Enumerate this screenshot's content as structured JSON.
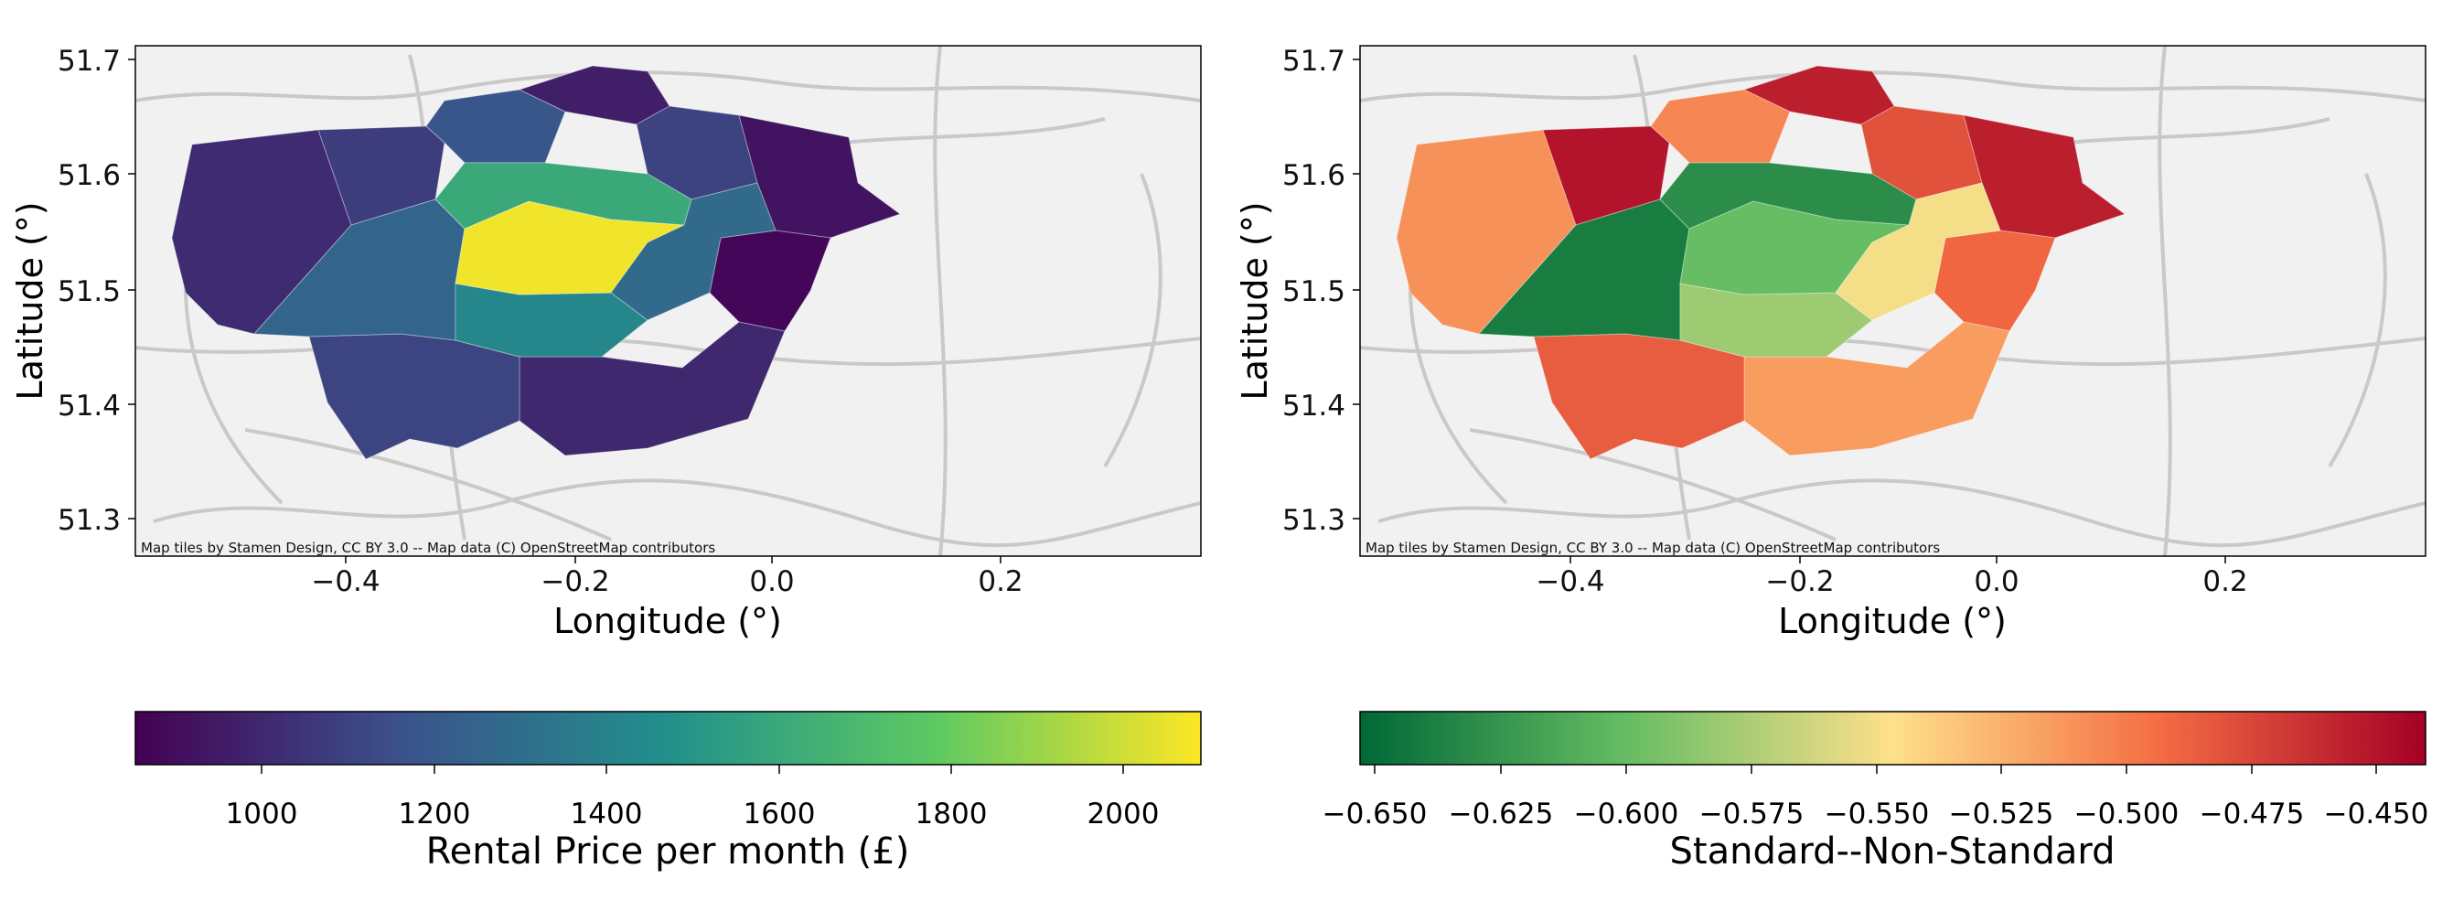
{
  "maps": [
    {
      "id": "rental",
      "attribution": "Map tiles by Stamen Design, CC BY 3.0 -- Map data (C) OpenStreetMap contributors",
      "xlabel": "Longitude (°)",
      "ylabel": "Latitude (°)",
      "xticks": [
        "−0.4",
        "−0.2",
        "0.0",
        "0.2"
      ],
      "yticks": [
        "51.7",
        "51.6",
        "51.5",
        "51.4",
        "51.3"
      ],
      "colorbar": {
        "label": "Rental Price per month (£)",
        "ticks": [
          "1000",
          "1200",
          "1400",
          "1600",
          "1800",
          "2000"
        ],
        "range": [
          850,
          2085
        ],
        "colormap": "viridis",
        "stops": [
          "#440154",
          "#3b528b",
          "#21908c",
          "#5dc963",
          "#fde725"
        ]
      },
      "district_values": [
        {
          "district": "west",
          "value": 1010
        },
        {
          "district": "north_west",
          "value": 1080
        },
        {
          "district": "north",
          "value": 1180
        },
        {
          "district": "north_top",
          "value": 960
        },
        {
          "district": "north_east",
          "value": 1100
        },
        {
          "district": "far_east",
          "value": 920
        },
        {
          "district": "south_east",
          "value": 870
        },
        {
          "district": "south",
          "value": 1000
        },
        {
          "district": "south_west",
          "value": 1110
        },
        {
          "district": "inner_west",
          "value": 1250
        },
        {
          "district": "inner_south",
          "value": 1420
        },
        {
          "district": "central",
          "value": 2060
        },
        {
          "district": "central_north",
          "value": 1600
        },
        {
          "district": "east_inner",
          "value": 1280
        }
      ]
    },
    {
      "id": "standard",
      "attribution": "Map tiles by Stamen Design, CC BY 3.0 -- Map data (C) OpenStreetMap contributors",
      "xlabel": "Longitude (°)",
      "ylabel": "Latitude (°)",
      "xticks": [
        "−0.4",
        "−0.2",
        "0.0",
        "0.2"
      ],
      "yticks": [
        "51.7",
        "51.6",
        "51.5",
        "51.4",
        "51.3"
      ],
      "colorbar": {
        "label": "Standard--Non-Standard",
        "ticks": [
          "−0.650",
          "−0.625",
          "−0.600",
          "−0.575",
          "−0.550",
          "−0.525",
          "−0.500",
          "−0.475",
          "−0.450"
        ],
        "range": [
          -0.653,
          -0.44
        ],
        "colormap": "RdYlGn_r",
        "stops": [
          "#006837",
          "#66bd63",
          "#fee08b",
          "#f46d43",
          "#a50026"
        ]
      },
      "district_values": [
        {
          "district": "west",
          "value": -0.51
        },
        {
          "district": "north_west",
          "value": -0.45
        },
        {
          "district": "north",
          "value": -0.505
        },
        {
          "district": "north_top",
          "value": -0.455
        },
        {
          "district": "north_east",
          "value": -0.48
        },
        {
          "district": "far_east",
          "value": -0.455
        },
        {
          "district": "south_east",
          "value": -0.49
        },
        {
          "district": "south",
          "value": -0.515
        },
        {
          "district": "south_west",
          "value": -0.485
        },
        {
          "district": "inner_west",
          "value": -0.64
        },
        {
          "district": "inner_south",
          "value": -0.58
        },
        {
          "district": "central",
          "value": -0.6
        },
        {
          "district": "central_north",
          "value": -0.63
        },
        {
          "district": "east_inner",
          "value": -0.55
        }
      ]
    }
  ]
}
